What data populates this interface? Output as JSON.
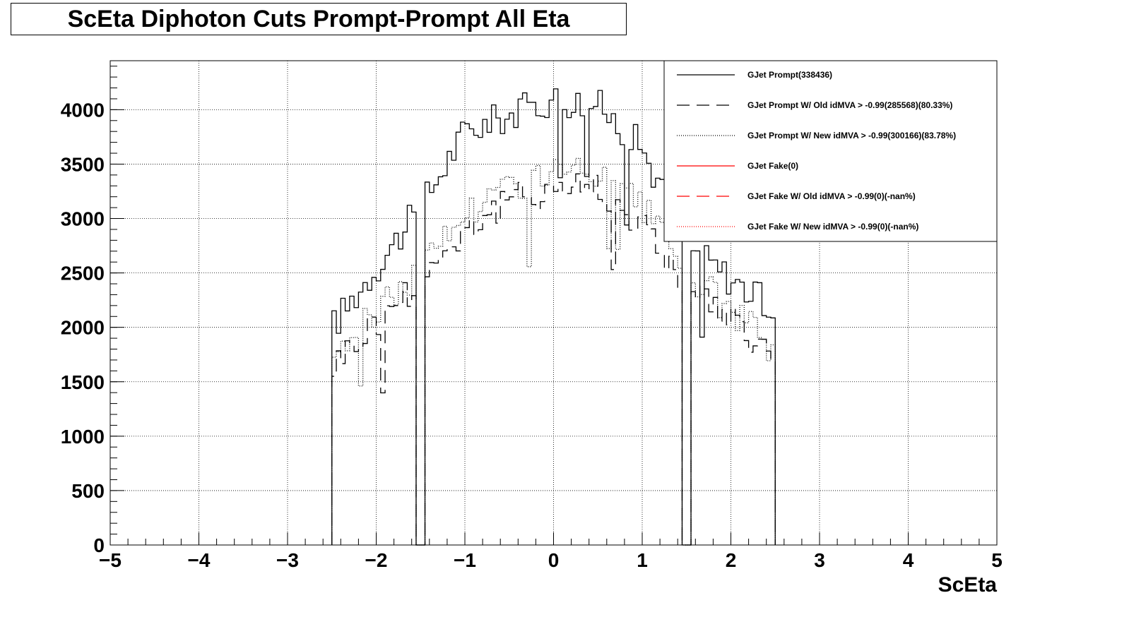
{
  "chart_data": {
    "type": "line",
    "title": "ScEta Diphoton Cuts Prompt-Prompt All Eta",
    "xlabel": "ScEta",
    "ylabel": "",
    "xlim": [
      -5,
      5
    ],
    "ylim": [
      0,
      4450
    ],
    "x_ticks": [
      "−5",
      "−4",
      "−3",
      "−2",
      "−1",
      "0",
      "1",
      "2",
      "3",
      "4",
      "5"
    ],
    "y_ticks": [
      "0",
      "500",
      "1000",
      "1500",
      "2000",
      "2500",
      "3000",
      "3500",
      "4000"
    ],
    "y_tick_values": [
      0,
      500,
      1000,
      1500,
      2000,
      2500,
      3000,
      3500,
      4000
    ],
    "grid": true,
    "legend_position": "top-right",
    "bin_width": 0.05,
    "series": [
      {
        "name": "GJet Prompt(338436)",
        "color": "#000000",
        "style": "solid",
        "x": [
          -2.5,
          -1.5,
          -1.0,
          -0.5,
          0.0,
          0.5,
          1.0,
          1.5,
          2.5
        ],
        "values": [
          2000,
          3100,
          3800,
          3950,
          4100,
          4050,
          3650,
          2750,
          2150
        ]
      },
      {
        "name": "GJet Prompt W/ Old idMVA > -0.99(285568)(80.33%)",
        "color": "#000000",
        "style": "dashed",
        "x": [
          -2.5,
          -1.5,
          -1.0,
          -0.5,
          0.0,
          0.5,
          1.0,
          1.5,
          2.5
        ],
        "values": [
          1650,
          2450,
          2900,
          3150,
          3300,
          3300,
          2950,
          2400,
          1700
        ]
      },
      {
        "name": "GJet Prompt W/ New idMVA > -0.99(300166)(83.78%)",
        "color": "#000000",
        "style": "dotted",
        "x": [
          -2.5,
          -1.5,
          -1.0,
          -0.5,
          0.0,
          0.5,
          1.0,
          1.5,
          2.5
        ],
        "values": [
          1750,
          2550,
          3050,
          3300,
          3420,
          3400,
          3100,
          2500,
          1800
        ]
      },
      {
        "name": "GJet Fake(0)",
        "color": "#ff0000",
        "style": "solid",
        "x": [],
        "values": []
      },
      {
        "name": "GJet Fake W/ Old idMVA > -0.99(0)(-nan%)",
        "color": "#ff0000",
        "style": "dashed",
        "x": [],
        "values": []
      },
      {
        "name": "GJet Fake W/ New idMVA > -0.99(0)(-nan%)",
        "color": "#ff0000",
        "style": "dotted",
        "x": [],
        "values": []
      }
    ]
  }
}
